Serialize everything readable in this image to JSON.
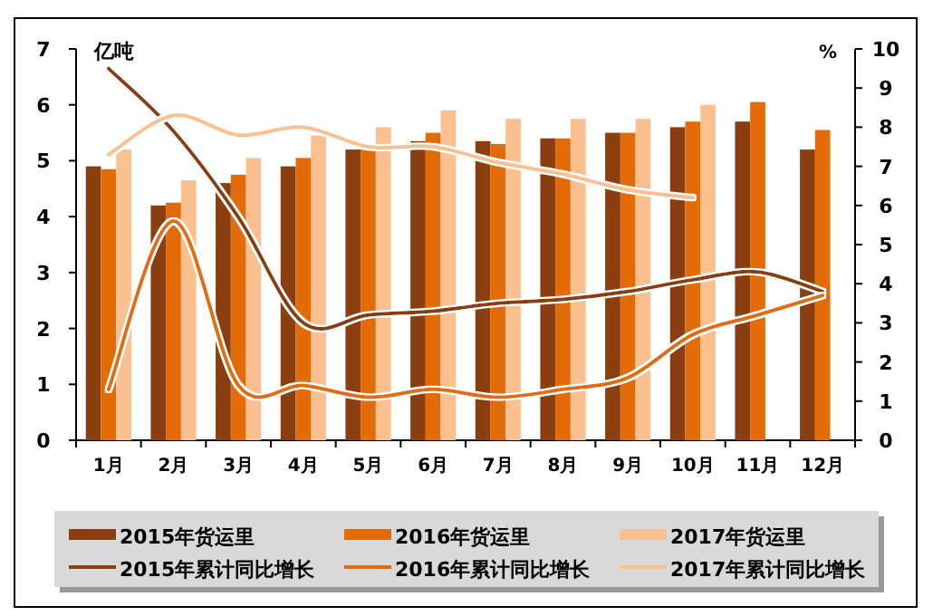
{
  "chart_data": {
    "type": "bar",
    "ylabel": "亿吨",
    "y2label": "%",
    "categories": [
      "1月",
      "2月",
      "3月",
      "4月",
      "5月",
      "6月",
      "7月",
      "8月",
      "9月",
      "10月",
      "11月",
      "12月"
    ],
    "series": [
      {
        "name": "2015年货运里",
        "color": "#8b3e0f",
        "values": [
          4.9,
          4.2,
          4.6,
          4.9,
          5.2,
          5.35,
          5.35,
          5.4,
          5.5,
          5.6,
          5.7,
          5.2
        ]
      },
      {
        "name": "2016年货运里",
        "color": "#e36c09",
        "values": [
          4.85,
          4.25,
          4.75,
          5.05,
          5.25,
          5.5,
          5.3,
          5.4,
          5.5,
          5.7,
          6.05,
          5.55
        ]
      },
      {
        "name": "2017年货运里",
        "color": "#fac090",
        "values": [
          5.2,
          4.65,
          5.05,
          5.45,
          5.6,
          5.9,
          5.75,
          5.75,
          5.75,
          6.0,
          null,
          null
        ]
      },
      {
        "name": "2015年累计同比增长",
        "type": "line",
        "axis": "y2",
        "color": "#8b3e0f",
        "values": [
          9.5,
          7.9,
          5.7,
          3.0,
          3.2,
          3.3,
          3.5,
          3.6,
          3.8,
          4.1,
          4.3,
          3.8
        ]
      },
      {
        "name": "2016年累计同比增长",
        "type": "line",
        "axis": "y2",
        "color": "#e36c09",
        "values": [
          1.3,
          5.6,
          1.4,
          1.4,
          1.1,
          1.3,
          1.1,
          1.3,
          1.6,
          2.7,
          3.2,
          3.7
        ]
      },
      {
        "name": "2017年累计同比增长",
        "type": "line",
        "axis": "y2",
        "color": "#fac090",
        "values": [
          7.3,
          8.3,
          7.8,
          8.0,
          7.5,
          7.5,
          7.1,
          6.8,
          6.4,
          6.2,
          null,
          null
        ]
      }
    ],
    "ylim": [
      0,
      7
    ],
    "yticks": [
      0,
      1,
      2,
      3,
      4,
      5,
      6,
      7
    ],
    "y2lim": [
      0,
      10
    ],
    "y2ticks": [
      0,
      1,
      2,
      3,
      4,
      5,
      6,
      7,
      8,
      9,
      10
    ],
    "legend": "bottom",
    "grid": false
  }
}
